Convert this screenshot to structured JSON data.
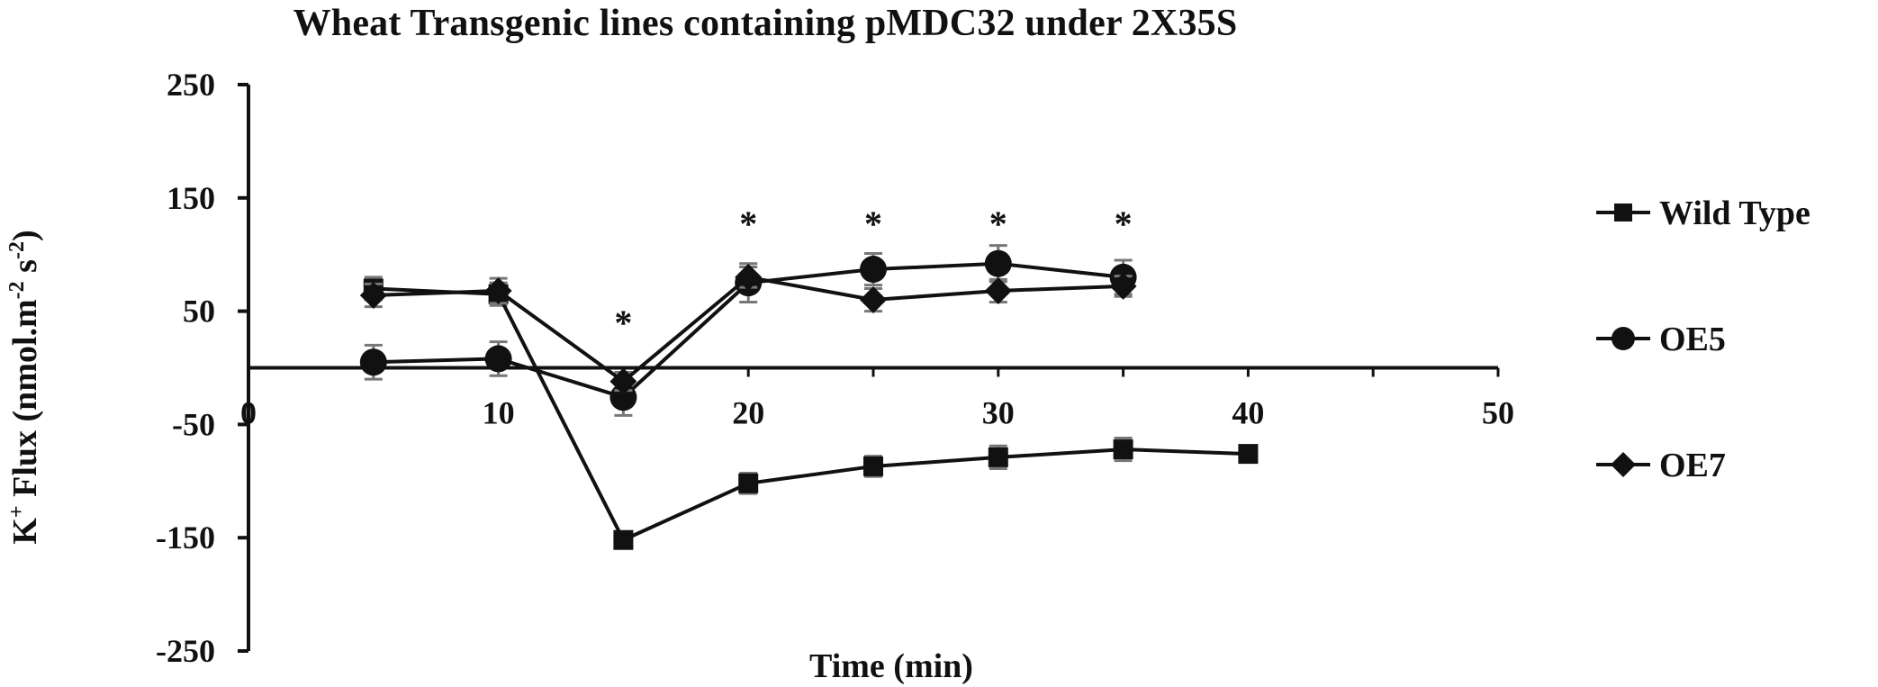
{
  "chart_data": {
    "type": "line",
    "title": "Wheat Transgenic lines containing pMDC32 under 2X35S",
    "xlabel": "Time (min)",
    "ylabel": {
      "main": "K",
      "sup1": "+",
      "mid": " Flux (nmol.m",
      "sup2": "-2",
      "mid2": " s",
      "sup3": "-2",
      "end": ")"
    },
    "xlim": [
      0,
      50
    ],
    "ylim": [
      -250,
      250
    ],
    "xticks": [
      0,
      10,
      20,
      30,
      40,
      50
    ],
    "yticks": [
      250,
      150,
      50,
      -50,
      -150,
      -250
    ],
    "legend_position": "right",
    "series": [
      {
        "name": "Wild Type",
        "marker": "square",
        "x": [
          5,
          10,
          15,
          20,
          25,
          30,
          35,
          40
        ],
        "y": [
          70,
          65,
          -152,
          -102,
          -87,
          -79,
          -72,
          -76
        ],
        "err": [
          10,
          10,
          5,
          9,
          9,
          10,
          10,
          5
        ]
      },
      {
        "name": "OE5",
        "marker": "circle",
        "x": [
          5,
          10,
          15,
          20,
          25,
          30,
          35
        ],
        "y": [
          5,
          8,
          -26,
          75,
          87,
          92,
          80
        ],
        "err": [
          15,
          15,
          16,
          17,
          14,
          16,
          15
        ]
      },
      {
        "name": "OE7",
        "marker": "diamond",
        "x": [
          5,
          10,
          15,
          20,
          25,
          30,
          35
        ],
        "y": [
          64,
          68,
          -12,
          80,
          60,
          68,
          72
        ],
        "err": [
          10,
          11,
          8,
          9,
          10,
          10,
          9
        ]
      }
    ],
    "annotations": [
      {
        "text": "*",
        "x": 15
      },
      {
        "text": "*",
        "x": 20
      },
      {
        "text": "*",
        "x": 25
      },
      {
        "text": "*",
        "x": 30
      },
      {
        "text": "*",
        "x": 35
      }
    ]
  }
}
